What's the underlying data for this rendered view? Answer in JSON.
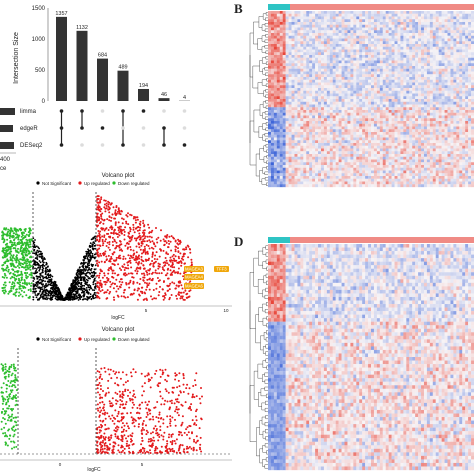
{
  "panels": {
    "upset": {
      "y_axis_label": "Intersection Size",
      "y_ticks": [
        "0",
        "500",
        "1000",
        "1500"
      ],
      "sets": [
        "limma",
        "edgeR",
        "DESeq2"
      ],
      "set_size_tick": "400",
      "set_size_label_fragment": "ce"
    },
    "volcano_top": {
      "title": "Volcano plot",
      "legend": {
        "not_significant": "Not Significant",
        "up": "Up regulated",
        "down": "Down regulated"
      },
      "xlabel": "logFC",
      "x_ticks": [
        "5",
        "10"
      ],
      "gene_labels": [
        "MAGEA3",
        "MAGEA4",
        "MAGEA6",
        "TFF3"
      ]
    },
    "volcano_bottom": {
      "title": "Volcano plot",
      "legend": {
        "not_significant": "Not Significant",
        "up": "Up regulated",
        "down": "Down regulated"
      },
      "xlabel": "logFC",
      "x_ticks": [
        "0",
        "5"
      ]
    },
    "heatmap_b": {
      "label": "B"
    },
    "heatmap_d": {
      "label": "D"
    }
  },
  "colors": {
    "bar": "#333333",
    "not_significant": "#000000",
    "up": "#e31a1c",
    "down": "#2dbd2d",
    "gene_label_bg": "#f0a70a",
    "heatmap_high": "#e8463a",
    "heatmap_low": "#3c64d8",
    "annotation_group1": "#2ec4c4",
    "annotation_group2": "#f08b85"
  },
  "chart_data": [
    {
      "type": "bar",
      "categories": [
        "limma∩edgeR∩DESeq2",
        "limma∩edgeR",
        "edgeR",
        "limma∩DESeq2",
        "limma",
        "edgeR∩DESeq2",
        "DESeq2"
      ],
      "values": [
        1357,
        1132,
        684,
        489,
        194,
        46,
        4
      ],
      "ylabel": "Intersection Size",
      "ylim": [
        0,
        1500
      ]
    },
    {
      "type": "scatter",
      "title": "Volcano plot",
      "xlabel": "logFC",
      "series": [
        {
          "name": "Not Significant"
        },
        {
          "name": "Up regulated"
        },
        {
          "name": "Down regulated"
        }
      ],
      "annotations": [
        "MAGEA3",
        "MAGEA4",
        "MAGEA6",
        "TFF3"
      ]
    },
    {
      "type": "scatter",
      "title": "Volcano plot",
      "xlabel": "logFC",
      "series": [
        {
          "name": "Not Significant"
        },
        {
          "name": "Up regulated"
        },
        {
          "name": "Down regulated"
        }
      ]
    },
    {
      "type": "heatmap"
    },
    {
      "type": "heatmap"
    }
  ]
}
